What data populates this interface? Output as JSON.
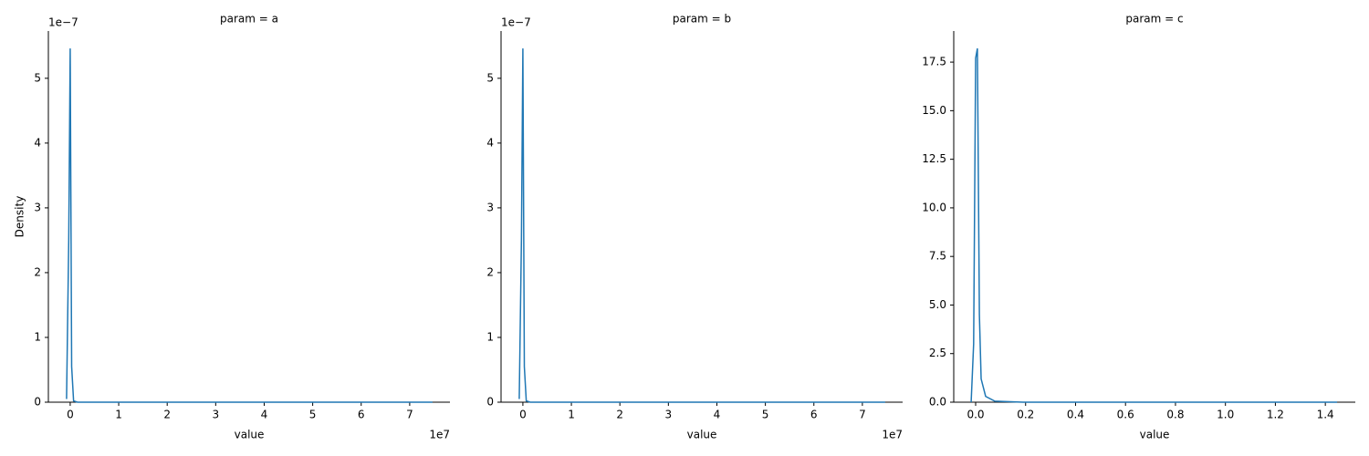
{
  "chart_data": [
    {
      "type": "line",
      "title": "param = a",
      "xlabel": "value",
      "ylabel": "Density",
      "color": "#1f77b4",
      "x_offset_label": "1e7",
      "y_offset_label": "1e−7",
      "x": [
        -750000,
        -300000,
        0,
        300000,
        700000,
        1500000,
        74700000
      ],
      "values": [
        5e-09,
        2.5e-07,
        5.46e-07,
        5.5e-08,
        2e-09,
        0,
        0
      ],
      "xlim": [
        -4500000,
        78300000
      ],
      "ylim": [
        0,
        5.73e-07
      ],
      "xticks": [
        0,
        {
          "value": 10000000,
          "label": "1"
        },
        {
          "value": 20000000,
          "label": "2"
        },
        {
          "value": 30000000,
          "label": "3"
        },
        {
          "value": 40000000,
          "label": "4"
        },
        {
          "value": 50000000,
          "label": "5"
        },
        {
          "value": 60000000,
          "label": "6"
        },
        {
          "value": 70000000,
          "label": "7"
        }
      ],
      "yticks": [
        0,
        {
          "value": 1e-07,
          "label": "1"
        },
        {
          "value": 2e-07,
          "label": "2"
        },
        {
          "value": 3e-07,
          "label": "3"
        },
        {
          "value": 4e-07,
          "label": "4"
        },
        {
          "value": 5e-07,
          "label": "5"
        }
      ]
    },
    {
      "type": "line",
      "title": "param = b",
      "xlabel": "value",
      "color": "#1f77b4",
      "x_offset_label": "1e7",
      "y_offset_label": "1e−7",
      "x": [
        -750000,
        -300000,
        0,
        300000,
        700000,
        1500000,
        74700000
      ],
      "values": [
        5e-09,
        2.5e-07,
        5.46e-07,
        5.5e-08,
        2e-09,
        0,
        0
      ],
      "xlim": [
        -4500000,
        78300000
      ],
      "ylim": [
        0,
        5.73e-07
      ],
      "xticks": [
        0,
        {
          "value": 10000000,
          "label": "1"
        },
        {
          "value": 20000000,
          "label": "2"
        },
        {
          "value": 30000000,
          "label": "3"
        },
        {
          "value": 40000000,
          "label": "4"
        },
        {
          "value": 50000000,
          "label": "5"
        },
        {
          "value": 60000000,
          "label": "6"
        },
        {
          "value": 70000000,
          "label": "7"
        }
      ],
      "yticks": [
        0,
        {
          "value": 1e-07,
          "label": "1"
        },
        {
          "value": 2e-07,
          "label": "2"
        },
        {
          "value": 3e-07,
          "label": "3"
        },
        {
          "value": 4e-07,
          "label": "4"
        },
        {
          "value": 5e-07,
          "label": "5"
        }
      ]
    },
    {
      "type": "line",
      "title": "param = c",
      "xlabel": "value",
      "color": "#1f77b4",
      "x": [
        -0.018,
        -0.008,
        0.0,
        0.007,
        0.015,
        0.022,
        0.04,
        0.077,
        0.19,
        1.447
      ],
      "values": [
        0,
        3,
        17.7,
        18.2,
        4.5,
        1.2,
        0.3,
        0.05,
        0,
        0
      ],
      "xlim": [
        -0.0877,
        1.52
      ],
      "ylim": [
        0,
        19.1
      ],
      "xticks": [
        {
          "value": 0,
          "label": "0.0"
        },
        0.2,
        0.4,
        0.6,
        0.8,
        {
          "value": 1,
          "label": "1.0"
        },
        1.2,
        1.4
      ],
      "yticks": [
        {
          "value": 0,
          "label": "0.0"
        },
        2.5,
        {
          "value": 5,
          "label": "5.0"
        },
        7.5,
        {
          "value": 10,
          "label": "10.0"
        },
        12.5,
        {
          "value": 15,
          "label": "15.0"
        },
        17.5
      ]
    }
  ]
}
